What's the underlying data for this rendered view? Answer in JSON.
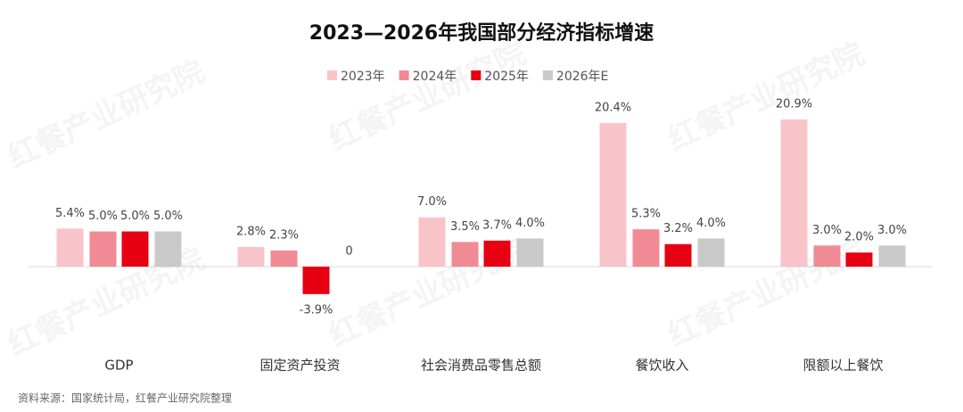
{
  "chart_data": {
    "type": "bar",
    "title": "2023—2026年我国部分经济指标增速",
    "categories": [
      "GDP",
      "固定资产投资",
      "社会消费品零售总额",
      "餐饮收入",
      "限额以上餐饮"
    ],
    "series": [
      {
        "name": "2023年",
        "color": "#f9c3ca",
        "values": [
          5.4,
          2.8,
          7.0,
          20.4,
          20.9
        ],
        "value_labels": [
          "5.4%",
          "2.8%",
          "7.0%",
          "20.4%",
          "20.9%"
        ]
      },
      {
        "name": "2024年",
        "color": "#f08a94",
        "values": [
          5.0,
          2.3,
          3.5,
          5.3,
          3.0
        ],
        "value_labels": [
          "5.0%",
          "2.3%",
          "3.5%",
          "5.3%",
          "3.0%"
        ]
      },
      {
        "name": "2025年",
        "color": "#e60012",
        "values": [
          5.0,
          -3.9,
          3.7,
          3.2,
          2.0
        ],
        "value_labels": [
          "5.0%",
          "-3.9%",
          "3.7%",
          "3.2%",
          "2.0%"
        ]
      },
      {
        "name": "2026年E",
        "color": "#c9c9c9",
        "values": [
          5.0,
          0,
          4.0,
          4.0,
          3.0
        ],
        "value_labels": [
          "5.0%",
          "0",
          "4.0%",
          "4.0%",
          "3.0%"
        ]
      }
    ],
    "source": "资料来源：国家统计局，红餐产业研究院整理",
    "watermark": "红餐产业研究院"
  }
}
